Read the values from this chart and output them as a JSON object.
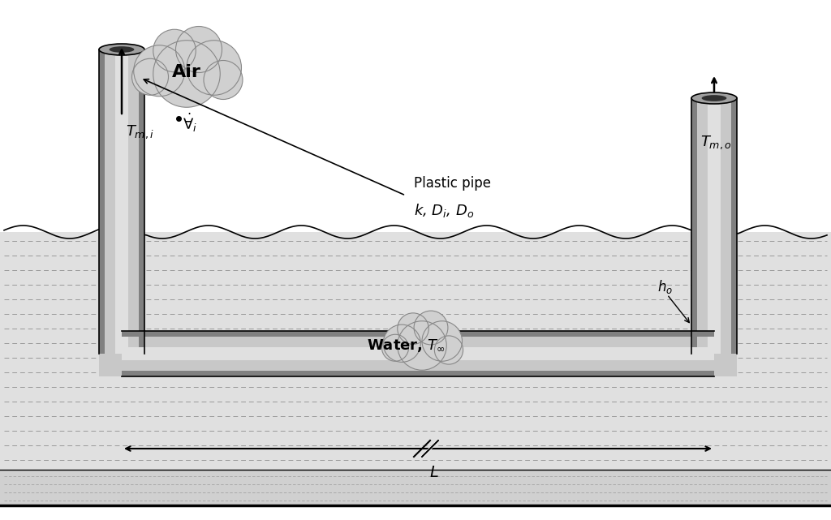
{
  "bg_color": "#ffffff",
  "pipe_gray": "#b0b0b0",
  "pipe_dark": "#606060",
  "pipe_light": "#d8d8d8",
  "water_bg": "#e8e8e8",
  "water_hatch": "#aaaaaa",
  "cloud_gray": "#c8c8c8",
  "ground_gray": "#c0c0c0",
  "text_color": "#000000",
  "figsize": [
    10.24,
    6.41
  ],
  "dpi": 100
}
